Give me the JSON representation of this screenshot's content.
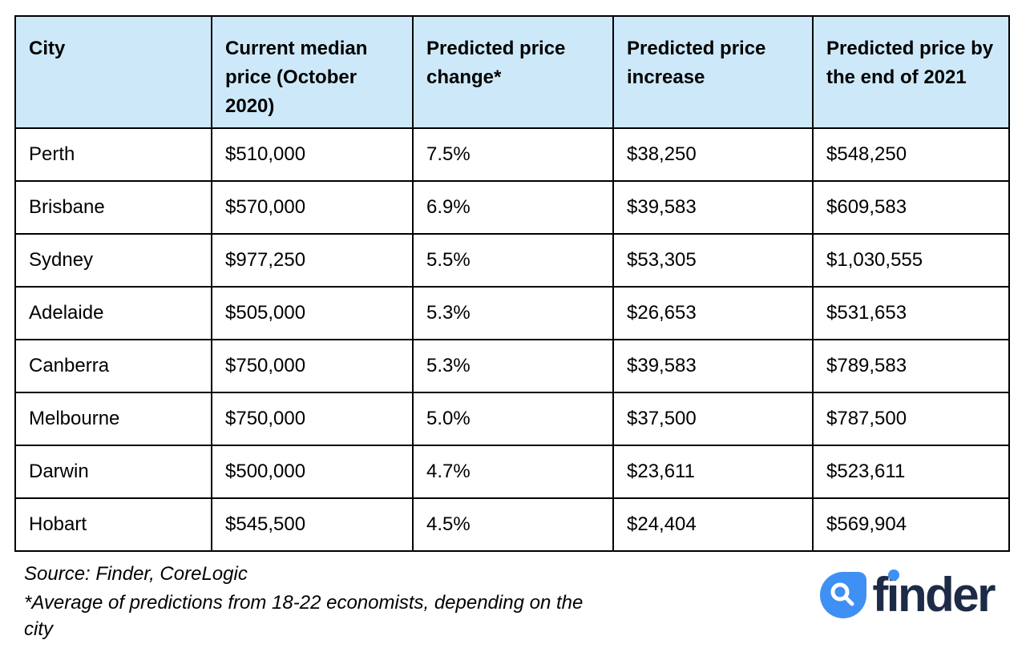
{
  "chart_data": {
    "type": "table",
    "columns": [
      "City",
      "Current median price (October 2020)",
      "Predicted price change*",
      "Predicted price increase",
      "Predicted price by the end of 2021"
    ],
    "rows": [
      [
        "Perth",
        "$510,000",
        "7.5%",
        "$38,250",
        "$548,250"
      ],
      [
        "Brisbane",
        "$570,000",
        "6.9%",
        "$39,583",
        "$609,583"
      ],
      [
        "Sydney",
        "$977,250",
        "5.5%",
        "$53,305",
        "$1,030,555"
      ],
      [
        "Adelaide",
        "$505,000",
        "5.3%",
        "$26,653",
        "$531,653"
      ],
      [
        "Canberra",
        "$750,000",
        "5.3%",
        "$39,583",
        "$789,583"
      ],
      [
        "Melbourne",
        "$750,000",
        "5.0%",
        "$37,500",
        "$787,500"
      ],
      [
        "Darwin",
        "$500,000",
        "4.7%",
        "$23,611",
        "$523,611"
      ],
      [
        "Hobart",
        "$545,500",
        "4.5%",
        "$24,404",
        "$569,904"
      ]
    ],
    "title": "",
    "legend": null,
    "grid": "full black cell borders",
    "header_background": "#cde9f9"
  },
  "footer": {
    "source": "Source: Finder, CoreLogic",
    "note": "*Average of predictions from 18-22 economists, depending on the city"
  },
  "logo": {
    "text": "finder",
    "icon": "magnifier-droplet-icon",
    "colors": {
      "droplet_blue": "#3f90f5",
      "word_navy": "#1d2b47"
    }
  },
  "colors": {
    "header_bg": "#cde9f9",
    "table_border": "#000000",
    "text": "#000000",
    "page_bg": "#ffffff"
  }
}
